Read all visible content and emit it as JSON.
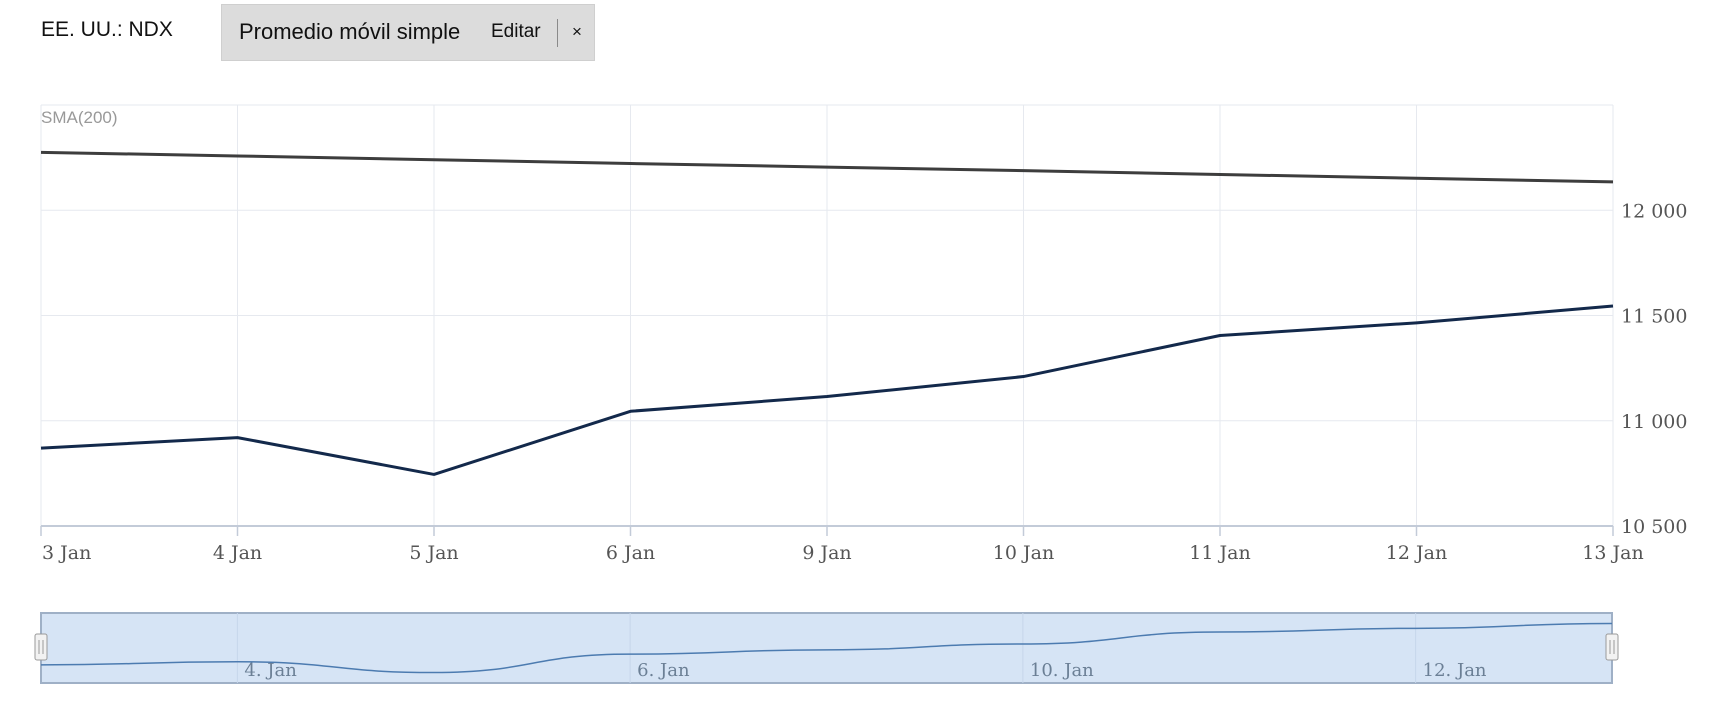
{
  "header": {
    "symbol": "EE. UU.: NDX",
    "indicator_label": "Promedio móvil simple",
    "edit_label": "Editar",
    "close_label": "×"
  },
  "colors": {
    "price_line": "#13294b",
    "sma_line": "#3d3d3d",
    "grid": "#e6e9ef",
    "axis": "#c3cbd8",
    "navigator_fill": "#d6e4f5",
    "navigator_border": "#9fb0c6",
    "navigator_line": "#4c7bb0"
  },
  "chart_data": {
    "type": "line",
    "categories": [
      "3 Jan",
      "4 Jan",
      "5 Jan",
      "6 Jan",
      "9 Jan",
      "10 Jan",
      "11 Jan",
      "12 Jan",
      "13 Jan"
    ],
    "series": [
      {
        "name": "",
        "values": [
          10870,
          10920,
          10745,
          11045,
          11115,
          11210,
          11405,
          11465,
          11545
        ]
      },
      {
        "name": "SMA(200)",
        "values": [
          12275,
          12258,
          12240,
          12222,
          12205,
          12188,
          12170,
          12152,
          12135
        ]
      }
    ],
    "yticks": [
      10500,
      11000,
      11500,
      12000
    ],
    "ytick_labels": [
      "10 500",
      "11 000",
      "11 500",
      "12 000"
    ],
    "ylim": [
      10500,
      12500
    ],
    "grid": true,
    "navigator": {
      "labels": [
        "4. Jan",
        "6. Jan",
        "10. Jan",
        "12. Jan"
      ],
      "label_index": [
        1,
        3,
        5,
        7
      ]
    }
  }
}
